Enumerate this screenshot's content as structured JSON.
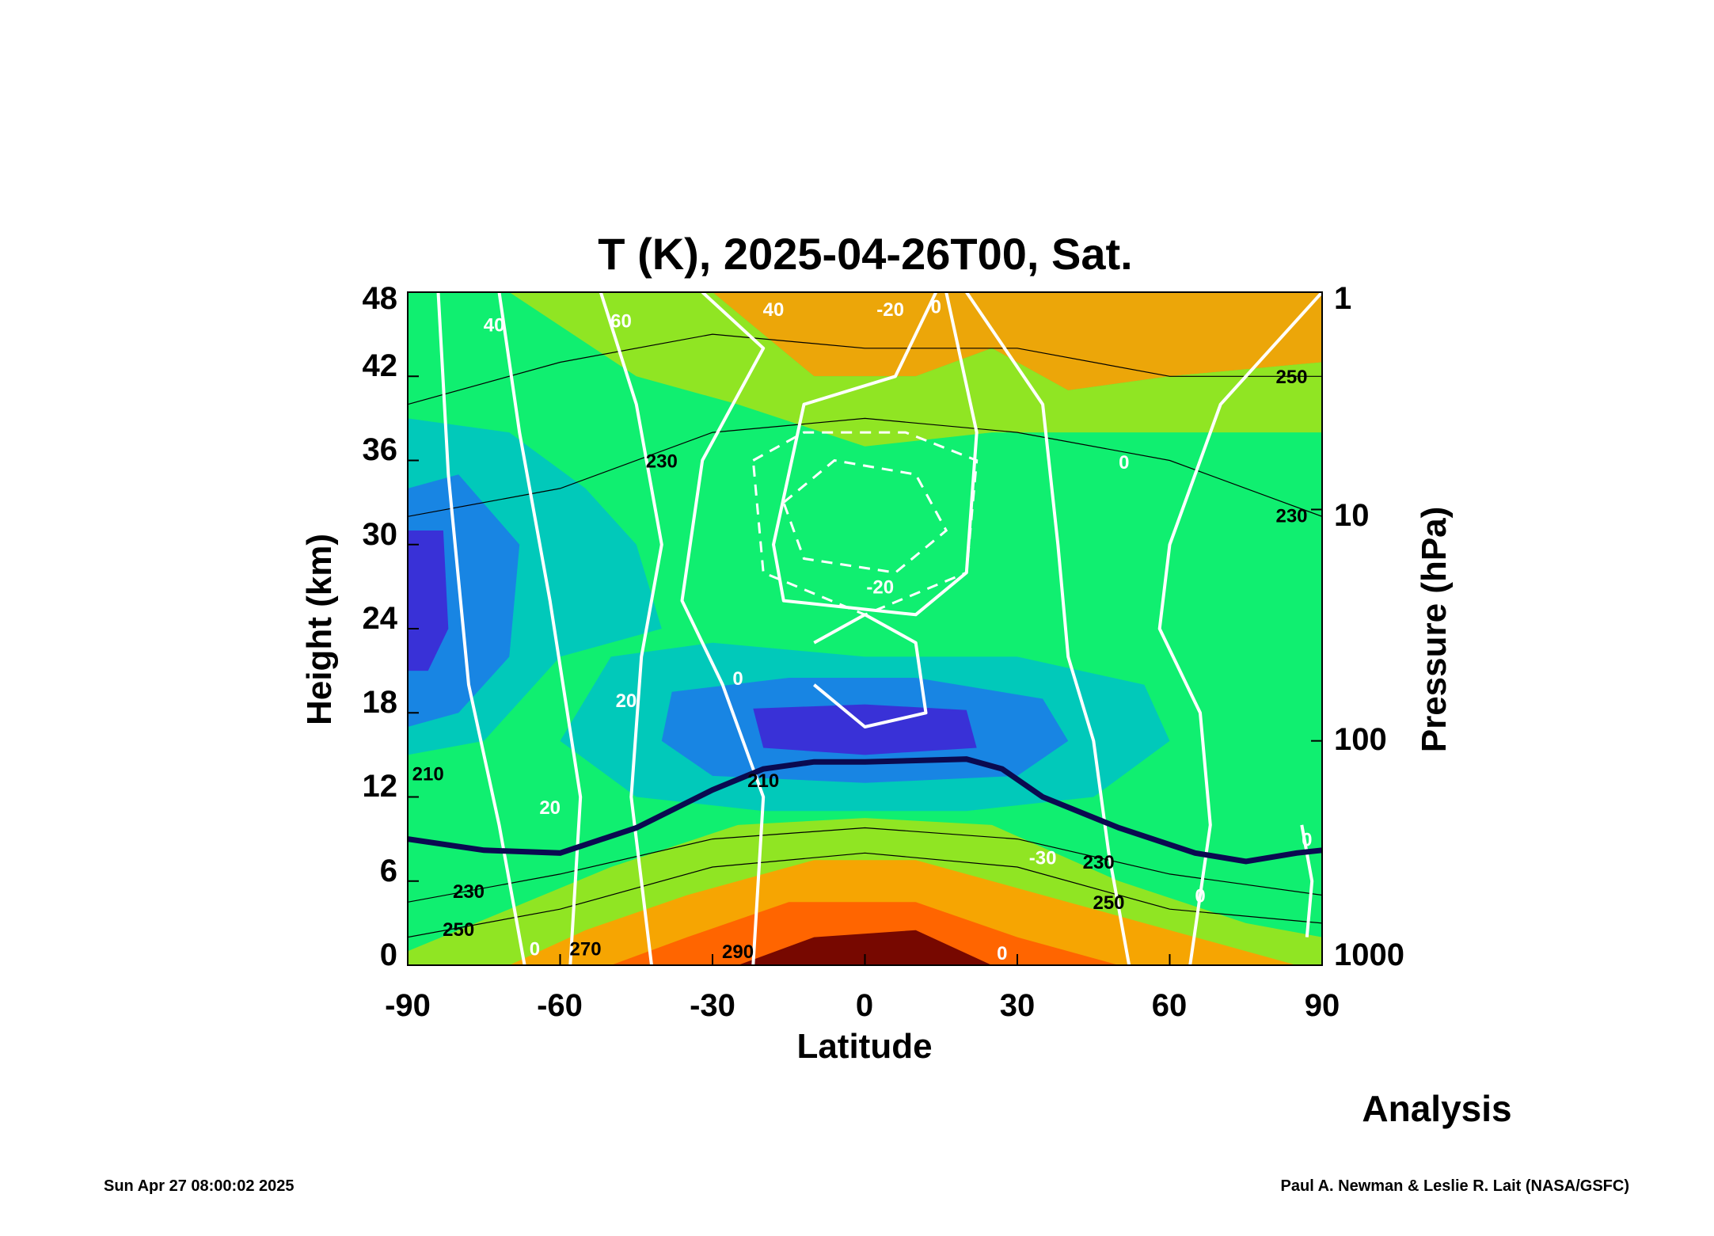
{
  "chart_data": {
    "type": "contour",
    "title": "T (K), 2025-04-26T00, Sat.",
    "xlabel": "Latitude",
    "ylabel_left": "Height (km)",
    "ylabel_right": "Pressure (hPa)",
    "xlim": [
      -90,
      90
    ],
    "ylim": [
      0,
      48
    ],
    "x_ticks": [
      "-90",
      "-60",
      "-30",
      "0",
      "30",
      "60",
      "90"
    ],
    "y_ticks_left": [
      "0",
      "6",
      "12",
      "18",
      "24",
      "30",
      "36",
      "42",
      "48"
    ],
    "y_ticks_right": [
      {
        "label": "1",
        "height_km": 48
      },
      {
        "label": "10",
        "height_km": 32.5
      },
      {
        "label": "100",
        "height_km": 16
      },
      {
        "label": "1000",
        "height_km": 0
      }
    ],
    "fields": {
      "temperature_contours_K": [
        {
          "label": "290",
          "lat": -25,
          "z": 0.5
        },
        {
          "label": "270",
          "lat": -55,
          "z": 0.7
        },
        {
          "label": "250",
          "lat": -80,
          "z": 2.1
        },
        {
          "label": "230",
          "lat": -78,
          "z": 4.8
        },
        {
          "label": "210",
          "lat": -86,
          "z": 13.2
        },
        {
          "label": "210",
          "lat": -20,
          "z": 12.7
        },
        {
          "label": "230",
          "lat": -40,
          "z": 35.5
        },
        {
          "label": "250",
          "lat": 48,
          "z": 4.0
        },
        {
          "label": "230",
          "lat": 46,
          "z": 6.9
        },
        {
          "label": "230",
          "lat": 84,
          "z": 31.6
        },
        {
          "label": "250",
          "lat": 84,
          "z": 41.5
        }
      ],
      "zonal_wind_contours_m_s": [
        {
          "label": "40",
          "lat": -73,
          "z": 45.2
        },
        {
          "label": "60",
          "lat": -48,
          "z": 45.5
        },
        {
          "label": "40",
          "lat": -18,
          "z": 46.3
        },
        {
          "label": "-20",
          "lat": 5,
          "z": 46.3
        },
        {
          "label": "0",
          "lat": 14,
          "z": 46.5
        },
        {
          "label": "-20",
          "lat": 3,
          "z": 26.5
        },
        {
          "label": "0",
          "lat": -25,
          "z": 20.0
        },
        {
          "label": "20",
          "lat": -47,
          "z": 18.4
        },
        {
          "label": "20",
          "lat": -62,
          "z": 10.8
        },
        {
          "label": "0",
          "lat": -65,
          "z": 0.7
        },
        {
          "label": "0",
          "lat": 27,
          "z": 0.4
        },
        {
          "label": "-30",
          "lat": 35,
          "z": 7.2
        },
        {
          "label": "0",
          "lat": 51,
          "z": 35.4
        },
        {
          "label": "0",
          "lat": 66,
          "z": 4.5
        },
        {
          "label": "0",
          "lat": 87,
          "z": 8.5
        }
      ],
      "tropopause_km": [
        [
          -90,
          9.0
        ],
        [
          -75,
          8.2
        ],
        [
          -60,
          8.0
        ],
        [
          -45,
          9.8
        ],
        [
          -30,
          12.5
        ],
        [
          -20,
          14.0
        ],
        [
          -10,
          14.5
        ],
        [
          0,
          14.5
        ],
        [
          10,
          14.6
        ],
        [
          20,
          14.7
        ],
        [
          27,
          14.0
        ],
        [
          35,
          12.0
        ],
        [
          50,
          9.8
        ],
        [
          65,
          8.0
        ],
        [
          75,
          7.4
        ],
        [
          85,
          8.0
        ],
        [
          90,
          8.2
        ]
      ]
    },
    "colors": {
      "warmest": "#6b0000",
      "warm": "#ff6000",
      "mid_warm": "#ffa000",
      "mid": "#9be41c",
      "cool": "#10ef70",
      "cooler": "#00c6c0",
      "cold": "#1a7fe6",
      "coldest": "#3d2ad6",
      "tropopause": "#0a0a50",
      "wind_contour": "#ffffff"
    },
    "annotations": {
      "product": "Analysis",
      "timestamp": "Sun Apr 27 08:00:02 2025",
      "credit": "Paul A. Newman & Leslie R. Lait (NASA/GSFC)"
    }
  }
}
